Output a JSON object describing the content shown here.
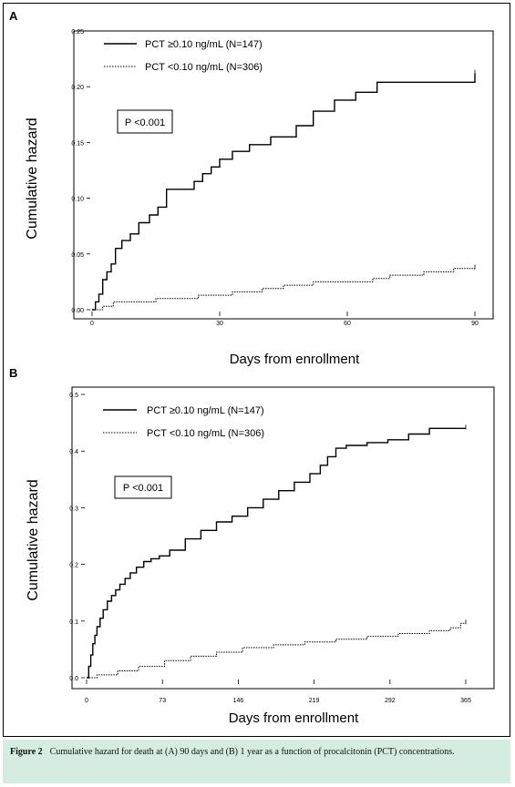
{
  "caption": {
    "label": "Figure 2",
    "text": "Cumulative hazard for death at (A) 90 days and (B) 1 year as a function of procalcitonin (PCT) concentrations."
  },
  "chart_data": [
    {
      "panel": "A",
      "type": "line",
      "xlabel": "Days from enrollment",
      "ylabel": "Cumulative hazard",
      "xlim": [
        0,
        90
      ],
      "ylim": [
        0,
        0.25
      ],
      "xticks": [
        0,
        30,
        60,
        90
      ],
      "yticks": [
        0.0,
        0.05,
        0.1,
        0.15,
        0.2,
        0.25
      ],
      "ytick_labels": [
        "0.00",
        "0.05",
        "0.10",
        "0.15",
        "0.20",
        "0.25"
      ],
      "annotation": "P <0.001",
      "legend_position": "top-left",
      "series": [
        {
          "name": "PCT ≥0.10 ng/mL (N=147)",
          "style": "solid",
          "x": [
            0,
            0.8,
            1.6,
            2.5,
            3.5,
            4.5,
            5.5,
            7,
            9,
            11,
            13.5,
            15.5,
            17.5,
            24,
            26,
            28,
            30,
            33,
            37,
            42,
            48,
            52,
            57,
            62,
            67,
            90
          ],
          "y": [
            0.0,
            0.007,
            0.014,
            0.027,
            0.034,
            0.041,
            0.055,
            0.062,
            0.068,
            0.078,
            0.085,
            0.092,
            0.108,
            0.115,
            0.122,
            0.128,
            0.135,
            0.142,
            0.148,
            0.155,
            0.165,
            0.178,
            0.188,
            0.195,
            0.204,
            0.212
          ]
        },
        {
          "name": "PCT <0.10 ng/mL (N=306)",
          "style": "dotted",
          "x": [
            0,
            2.5,
            5,
            15,
            25,
            33,
            40,
            45,
            52,
            66,
            70,
            78,
            85,
            90
          ],
          "y": [
            0.0,
            0.003,
            0.007,
            0.01,
            0.013,
            0.016,
            0.019,
            0.022,
            0.025,
            0.028,
            0.031,
            0.034,
            0.037,
            0.037
          ]
        }
      ]
    },
    {
      "panel": "B",
      "type": "line",
      "xlabel": "Days from enrollment",
      "ylabel": "Cumulative hazard",
      "xlim": [
        0,
        365
      ],
      "ylim": [
        0,
        0.5
      ],
      "xticks": [
        0,
        73,
        146,
        219,
        292,
        365
      ],
      "yticks": [
        0.0,
        0.1,
        0.2,
        0.3,
        0.4,
        0.5
      ],
      "ytick_labels": [
        "0.0",
        "0.1",
        "0.2",
        "0.3",
        "0.4",
        "0.5"
      ],
      "annotation": "P <0.001",
      "legend_position": "top-left",
      "series": [
        {
          "name": "PCT ≥0.10 ng/mL (N=147)",
          "style": "solid",
          "x": [
            0,
            2,
            4,
            6,
            8,
            10,
            13,
            16,
            20,
            24,
            28,
            32,
            37,
            42,
            48,
            55,
            62,
            70,
            80,
            95,
            110,
            125,
            140,
            155,
            170,
            185,
            200,
            215,
            225,
            232,
            240,
            250,
            270,
            290,
            310,
            330,
            365
          ],
          "y": [
            0.0,
            0.02,
            0.04,
            0.06,
            0.075,
            0.09,
            0.105,
            0.12,
            0.135,
            0.145,
            0.155,
            0.165,
            0.175,
            0.185,
            0.195,
            0.205,
            0.21,
            0.215,
            0.225,
            0.245,
            0.26,
            0.275,
            0.285,
            0.3,
            0.315,
            0.33,
            0.345,
            0.36,
            0.375,
            0.39,
            0.405,
            0.41,
            0.415,
            0.42,
            0.43,
            0.44,
            0.44
          ]
        },
        {
          "name": "PCT <0.10 ng/mL (N=306)",
          "style": "dotted",
          "x": [
            0,
            10,
            30,
            50,
            75,
            100,
            125,
            150,
            180,
            210,
            240,
            270,
            300,
            330,
            350,
            360,
            365
          ],
          "y": [
            0.0,
            0.005,
            0.012,
            0.02,
            0.03,
            0.038,
            0.045,
            0.053,
            0.058,
            0.063,
            0.068,
            0.073,
            0.078,
            0.083,
            0.088,
            0.096,
            0.096
          ]
        }
      ]
    }
  ]
}
